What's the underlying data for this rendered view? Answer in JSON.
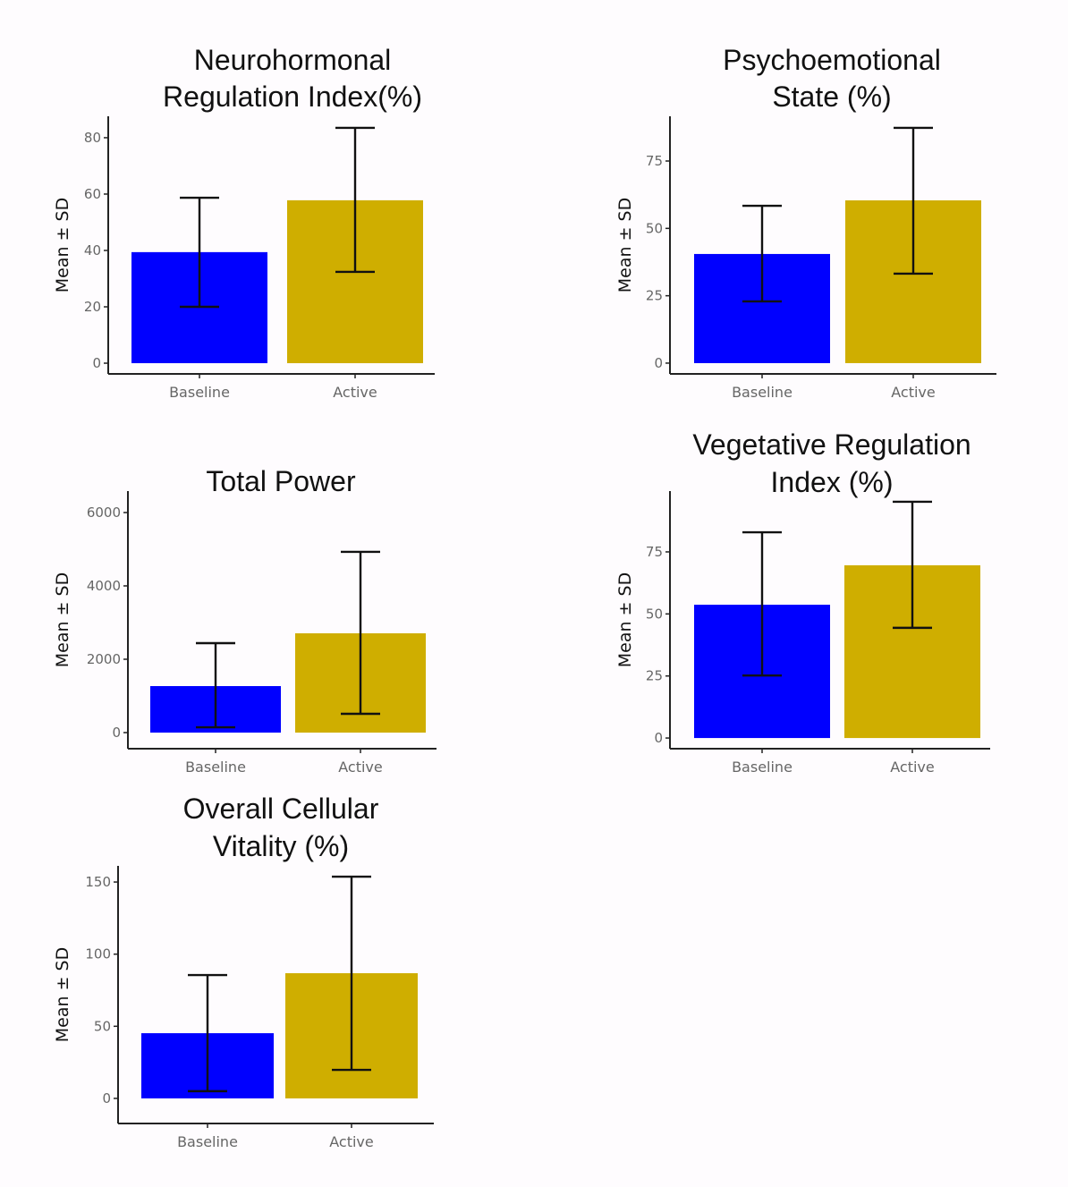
{
  "chart_data": [
    {
      "type": "bar",
      "title": [
        "Neurohormonal",
        "Regulation Index(%)"
      ],
      "ylabel": "Mean ± SD",
      "categories": [
        "Baseline",
        "Active"
      ],
      "values": [
        39.4,
        57.8
      ],
      "error_low": [
        20.0,
        32.4
      ],
      "error_high": [
        58.7,
        83.5
      ],
      "yticks": [
        0,
        20,
        40,
        60,
        80
      ],
      "ylim": [
        -3.8,
        87.6
      ],
      "colors": [
        "#0000ff",
        "#cfae00"
      ]
    },
    {
      "type": "bar",
      "title": [
        "Psychoemotional",
        "State (%)"
      ],
      "ylabel": "Mean ± SD",
      "categories": [
        "Baseline",
        "Active"
      ],
      "values": [
        40.5,
        60.4
      ],
      "error_low": [
        22.9,
        33.2
      ],
      "error_high": [
        58.4,
        87.3
      ],
      "yticks": [
        0,
        25,
        50,
        75
      ],
      "ylim": [
        -4.0,
        91.6
      ],
      "colors": [
        "#0000ff",
        "#cfae00"
      ]
    },
    {
      "type": "bar",
      "title": [
        "Total Power"
      ],
      "ylabel": "Mean ± SD",
      "categories": [
        "Baseline",
        "Active"
      ],
      "values": [
        1268,
        2707
      ],
      "error_low": [
        146,
        512
      ],
      "error_high": [
        2439,
        4927
      ],
      "yticks": [
        0,
        2000,
        4000,
        6000
      ],
      "ylim": [
        -439,
        6585
      ],
      "colors": [
        "#0000ff",
        "#cfae00"
      ]
    },
    {
      "type": "bar",
      "title": [
        "Vegetative Regulation",
        "Index (%)"
      ],
      "ylabel": "Mean ± SD",
      "categories": [
        "Baseline",
        "Active"
      ],
      "values": [
        53.7,
        69.6
      ],
      "error_low": [
        25.2,
        44.4
      ],
      "error_high": [
        82.9,
        95.2
      ],
      "yticks": [
        0,
        25,
        50,
        75
      ],
      "ylim": [
        -4.3,
        99.5
      ],
      "colors": [
        "#0000ff",
        "#cfae00"
      ]
    },
    {
      "type": "bar",
      "title": [
        "Overall Cellular",
        "Vitality (%)"
      ],
      "ylabel": "Mean ± SD",
      "categories": [
        "Baseline",
        "Active"
      ],
      "values": [
        45.2,
        86.8
      ],
      "error_low": [
        5.0,
        19.8
      ],
      "error_high": [
        85.5,
        153.7
      ],
      "yticks": [
        0,
        50,
        100,
        150
      ],
      "ylim": [
        -17.4,
        161.2
      ],
      "colors": [
        "#0000ff",
        "#cfae00"
      ]
    }
  ]
}
